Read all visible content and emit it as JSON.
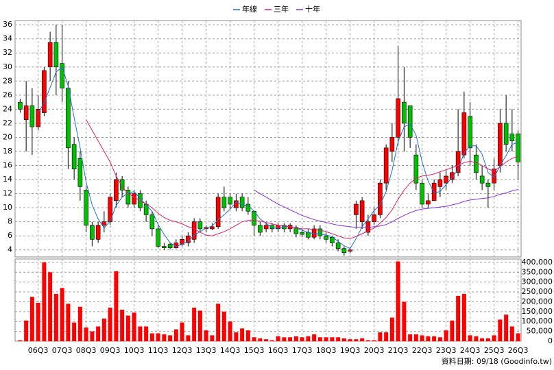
{
  "chart_data": {
    "type": "candlestick",
    "legend_position": "top",
    "source": "資料日期: 09/18 (Goodinfo.tw)",
    "up_color": "#ff0000",
    "down_color": "#00c000",
    "volume_color": "#ff0000",
    "categories": [
      null,
      null,
      null,
      "06Q3",
      null,
      null,
      null,
      "07Q3",
      null,
      null,
      null,
      "08Q3",
      null,
      null,
      null,
      "09Q3",
      null,
      null,
      null,
      "10Q3",
      null,
      null,
      null,
      "11Q3",
      null,
      null,
      null,
      "12Q3",
      null,
      null,
      null,
      "13Q3",
      null,
      null,
      null,
      "14Q3",
      null,
      null,
      null,
      "15Q3",
      null,
      null,
      null,
      "16Q3",
      null,
      null,
      null,
      "17Q3",
      null,
      null,
      null,
      "18Q3",
      null,
      null,
      null,
      "19Q3",
      null,
      null,
      null,
      "20Q3",
      null,
      null,
      null,
      "21Q3",
      null,
      null,
      null,
      "22Q3",
      null,
      null,
      null,
      "23Q3",
      null,
      null,
      null,
      "24Q3",
      null,
      null,
      null,
      "25Q3",
      null,
      null,
      null,
      "26Q3"
    ],
    "open": [
      25,
      22.5,
      24.5,
      21.5,
      23.5,
      30,
      33.5,
      30.5,
      27,
      19,
      17,
      12.5,
      7.5,
      5.5,
      7.5,
      8,
      11,
      14,
      12.5,
      10.5,
      12,
      10.5,
      9,
      7,
      4.5,
      4.8,
      4.3,
      4.8,
      5,
      5.5,
      8,
      7,
      7,
      7.3,
      11.5,
      11.5,
      10,
      11.5,
      10.5,
      9.5,
      7.5,
      7,
      7.5,
      7,
      7.5,
      7,
      7.2,
      6.5,
      6.5,
      5.8,
      7,
      6,
      5.8,
      5,
      4.2,
      3.8,
      9,
      8,
      6.5,
      8,
      9,
      13.5,
      18,
      20,
      25,
      24.5,
      17.5,
      13.5,
      10.5,
      11,
      13,
      13.5,
      14,
      15,
      17.5,
      23,
      17.5,
      14.5,
      13.5,
      13.5,
      16,
      22,
      20.5,
      20.5
    ],
    "high": [
      25.5,
      28,
      27,
      26,
      30,
      35,
      36,
      36,
      28,
      20,
      18,
      13,
      8,
      8,
      9.5,
      12,
      15,
      14.5,
      13,
      12.5,
      12.5,
      11,
      9.5,
      7.5,
      5,
      5,
      5.5,
      6,
      6.5,
      8.5,
      8.5,
      7.5,
      7.8,
      12,
      13,
      12,
      12,
      12,
      11.5,
      9.5,
      8,
      7.8,
      7.8,
      7.8,
      7.8,
      7.8,
      7.5,
      7,
      7,
      7.5,
      7.5,
      6.5,
      6,
      5.5,
      4.5,
      4.3,
      11,
      11.5,
      9,
      10,
      14,
      19,
      22,
      33,
      30,
      24.5,
      19,
      14,
      12,
      14,
      15,
      15.5,
      16,
      24,
      26.5,
      25,
      19,
      16,
      14,
      17,
      24,
      26,
      24,
      21
    ],
    "low": [
      23.5,
      18,
      17.5,
      21,
      23,
      28,
      26,
      25,
      15.5,
      14,
      11,
      6.5,
      4.5,
      5,
      6.5,
      7.5,
      10,
      11.5,
      10,
      10,
      9.5,
      8,
      6,
      4.3,
      4,
      4.1,
      4.2,
      4.5,
      4.5,
      5,
      6.5,
      6.5,
      6.8,
      7,
      9.5,
      9.8,
      9.5,
      9.5,
      9,
      6,
      6,
      6.5,
      6.5,
      6.5,
      6.5,
      6.5,
      5.8,
      5.8,
      5.5,
      5.5,
      5.5,
      5,
      4.5,
      3.8,
      3.2,
      3.5,
      7,
      7,
      6,
      7.5,
      8.5,
      12.5,
      16.5,
      19,
      18,
      18.5,
      12.5,
      10,
      10,
      11,
      11.5,
      12.5,
      13.5,
      14.5,
      17,
      16,
      14,
      12.5,
      10,
      12.5,
      15,
      18,
      18,
      14
    ],
    "close": [
      24,
      24.5,
      21.5,
      24,
      29.5,
      33.5,
      30,
      27,
      18.5,
      15.5,
      13,
      7.5,
      5.5,
      7.5,
      8,
      11.5,
      14,
      12.5,
      10.5,
      12,
      10,
      9,
      7,
      4.5,
      4.3,
      4.3,
      5,
      5.5,
      6,
      8,
      7,
      7.2,
      7.3,
      11.5,
      10,
      10.5,
      11,
      10,
      9.5,
      7.5,
      6.5,
      7.5,
      7,
      7.5,
      7,
      7.5,
      6.3,
      6.2,
      5.8,
      7,
      6,
      5.5,
      5,
      4.2,
      3.6,
      4,
      10.5,
      11,
      8,
      9,
      13.5,
      18.5,
      20,
      25.5,
      22,
      20,
      13.5,
      10.5,
      11,
      13.5,
      14,
      14.5,
      15,
      18,
      23.5,
      18.5,
      15,
      13.5,
      13,
      15.5,
      22,
      19,
      19.5,
      16.5
    ],
    "volume": [
      5000,
      105000,
      225000,
      195000,
      400000,
      350000,
      240000,
      270000,
      190000,
      95000,
      175000,
      70000,
      50000,
      75000,
      115000,
      170000,
      355000,
      160000,
      130000,
      145000,
      75000,
      75000,
      40000,
      40000,
      35000,
      30000,
      60000,
      95000,
      30000,
      170000,
      155000,
      55000,
      30000,
      190000,
      150000,
      100000,
      45000,
      65000,
      55000,
      20000,
      15000,
      10000,
      5000,
      25000,
      20000,
      20000,
      25000,
      20000,
      25000,
      35000,
      20000,
      20000,
      20000,
      20000,
      15000,
      10000,
      10000,
      15000,
      5000,
      5000,
      45000,
      45000,
      120000,
      405000,
      200000,
      35000,
      35000,
      30000,
      25000,
      25000,
      20000,
      55000,
      105000,
      230000,
      240000,
      30000,
      25000,
      15000,
      15000,
      30000,
      110000,
      135000,
      75000,
      40000
    ],
    "lines": [
      {
        "name": "年線",
        "color": "#1e6fd0",
        "values": [
          null,
          null,
          null,
          23.5,
          24.9,
          27.1,
          29.3,
          30,
          27.3,
          22.8,
          18.5,
          13.6,
          10.4,
          8.4,
          7.1,
          8.1,
          10.3,
          11.5,
          12.1,
          12.3,
          11.3,
          10.4,
          9.5,
          7.6,
          6.2,
          5,
          4.5,
          4.8,
          5.2,
          6.1,
          6.6,
          7.1,
          7.4,
          8.3,
          9,
          9.8,
          10.8,
          10.4,
          10.3,
          9.5,
          8.4,
          7.8,
          7.1,
          7.1,
          7.3,
          7.3,
          7.1,
          6.8,
          6.5,
          6.3,
          6.3,
          6.1,
          5.9,
          5.2,
          4.6,
          4.2,
          5.6,
          7.3,
          8.4,
          9.6,
          10.4,
          12.3,
          15.3,
          19.4,
          21.5,
          21.9,
          20.3,
          16.5,
          13.8,
          12.1,
          12.3,
          13.3,
          14.3,
          15.4,
          17.8,
          18.8,
          18.8,
          17.6,
          15,
          14.3,
          16,
          17.4,
          19,
          19.3
        ]
      },
      {
        "name": "三年",
        "color": "#e0206a",
        "values": [
          null,
          null,
          null,
          null,
          null,
          null,
          null,
          null,
          null,
          null,
          null,
          22.5,
          21,
          19.5,
          18,
          16.5,
          14.5,
          13,
          12,
          11.5,
          11,
          10.5,
          10,
          9.2,
          8.6,
          8.2,
          8,
          7.7,
          7.3,
          7,
          6.5,
          6.1,
          6,
          6.3,
          6.6,
          7,
          7.5,
          8,
          8.2,
          8.2,
          8.1,
          7.9,
          7.7,
          7.5,
          7.4,
          7.3,
          7.1,
          7,
          7,
          6.9,
          6.8,
          6.6,
          6.3,
          6,
          5.7,
          5.6,
          5.9,
          6.3,
          6.7,
          7.1,
          7.8,
          8.6,
          9.7,
          11.2,
          12.5,
          13.5,
          14.2,
          14.5,
          14.6,
          14.8,
          15.1,
          15.4,
          15.7,
          16,
          16.4,
          16.6,
          16.4,
          16,
          15.5,
          15.2,
          15.8,
          16.5,
          17,
          17.3
        ]
      },
      {
        "name": "十年",
        "color": "#8a2be2",
        "values": [
          null,
          null,
          null,
          null,
          null,
          null,
          null,
          null,
          null,
          null,
          null,
          null,
          null,
          null,
          null,
          null,
          null,
          null,
          null,
          null,
          null,
          null,
          null,
          null,
          null,
          null,
          null,
          null,
          null,
          null,
          null,
          null,
          null,
          null,
          null,
          null,
          null,
          null,
          null,
          12.5,
          12,
          11.5,
          11,
          10.5,
          10.1,
          9.7,
          9.3,
          8.9,
          8.6,
          8.3,
          8.1,
          7.9,
          7.7,
          7.5,
          7.4,
          7.3,
          7.2,
          7.2,
          7.2,
          7.3,
          7.4,
          7.6,
          8,
          8.5,
          8.9,
          9.3,
          9.6,
          9.8,
          9.9,
          10,
          10.1,
          10.2,
          10.4,
          10.6,
          10.9,
          11.1,
          11.2,
          11.3,
          11.4,
          11.6,
          11.9,
          12.1,
          12.4,
          12.6
        ]
      }
    ],
    "ylim": [
      3,
      36.6
    ],
    "yticks": [
      4,
      6,
      8,
      10,
      12,
      14,
      16,
      18,
      20,
      22,
      24,
      26,
      28,
      30,
      32,
      34,
      36
    ],
    "vlim": [
      0,
      417000
    ],
    "vticks": [
      {
        "value": 0,
        "label": "0"
      },
      {
        "value": 50000,
        "label": "50,000"
      },
      {
        "value": 100000,
        "label": "100,000"
      },
      {
        "value": 150000,
        "label": "150,000"
      },
      {
        "value": 200000,
        "label": "200,000"
      },
      {
        "value": 250000,
        "label": "250,000"
      },
      {
        "value": 300000,
        "label": "300,000"
      },
      {
        "value": 350000,
        "label": "350,000"
      },
      {
        "value": 400000,
        "label": "400,000"
      }
    ],
    "grid": true
  }
}
